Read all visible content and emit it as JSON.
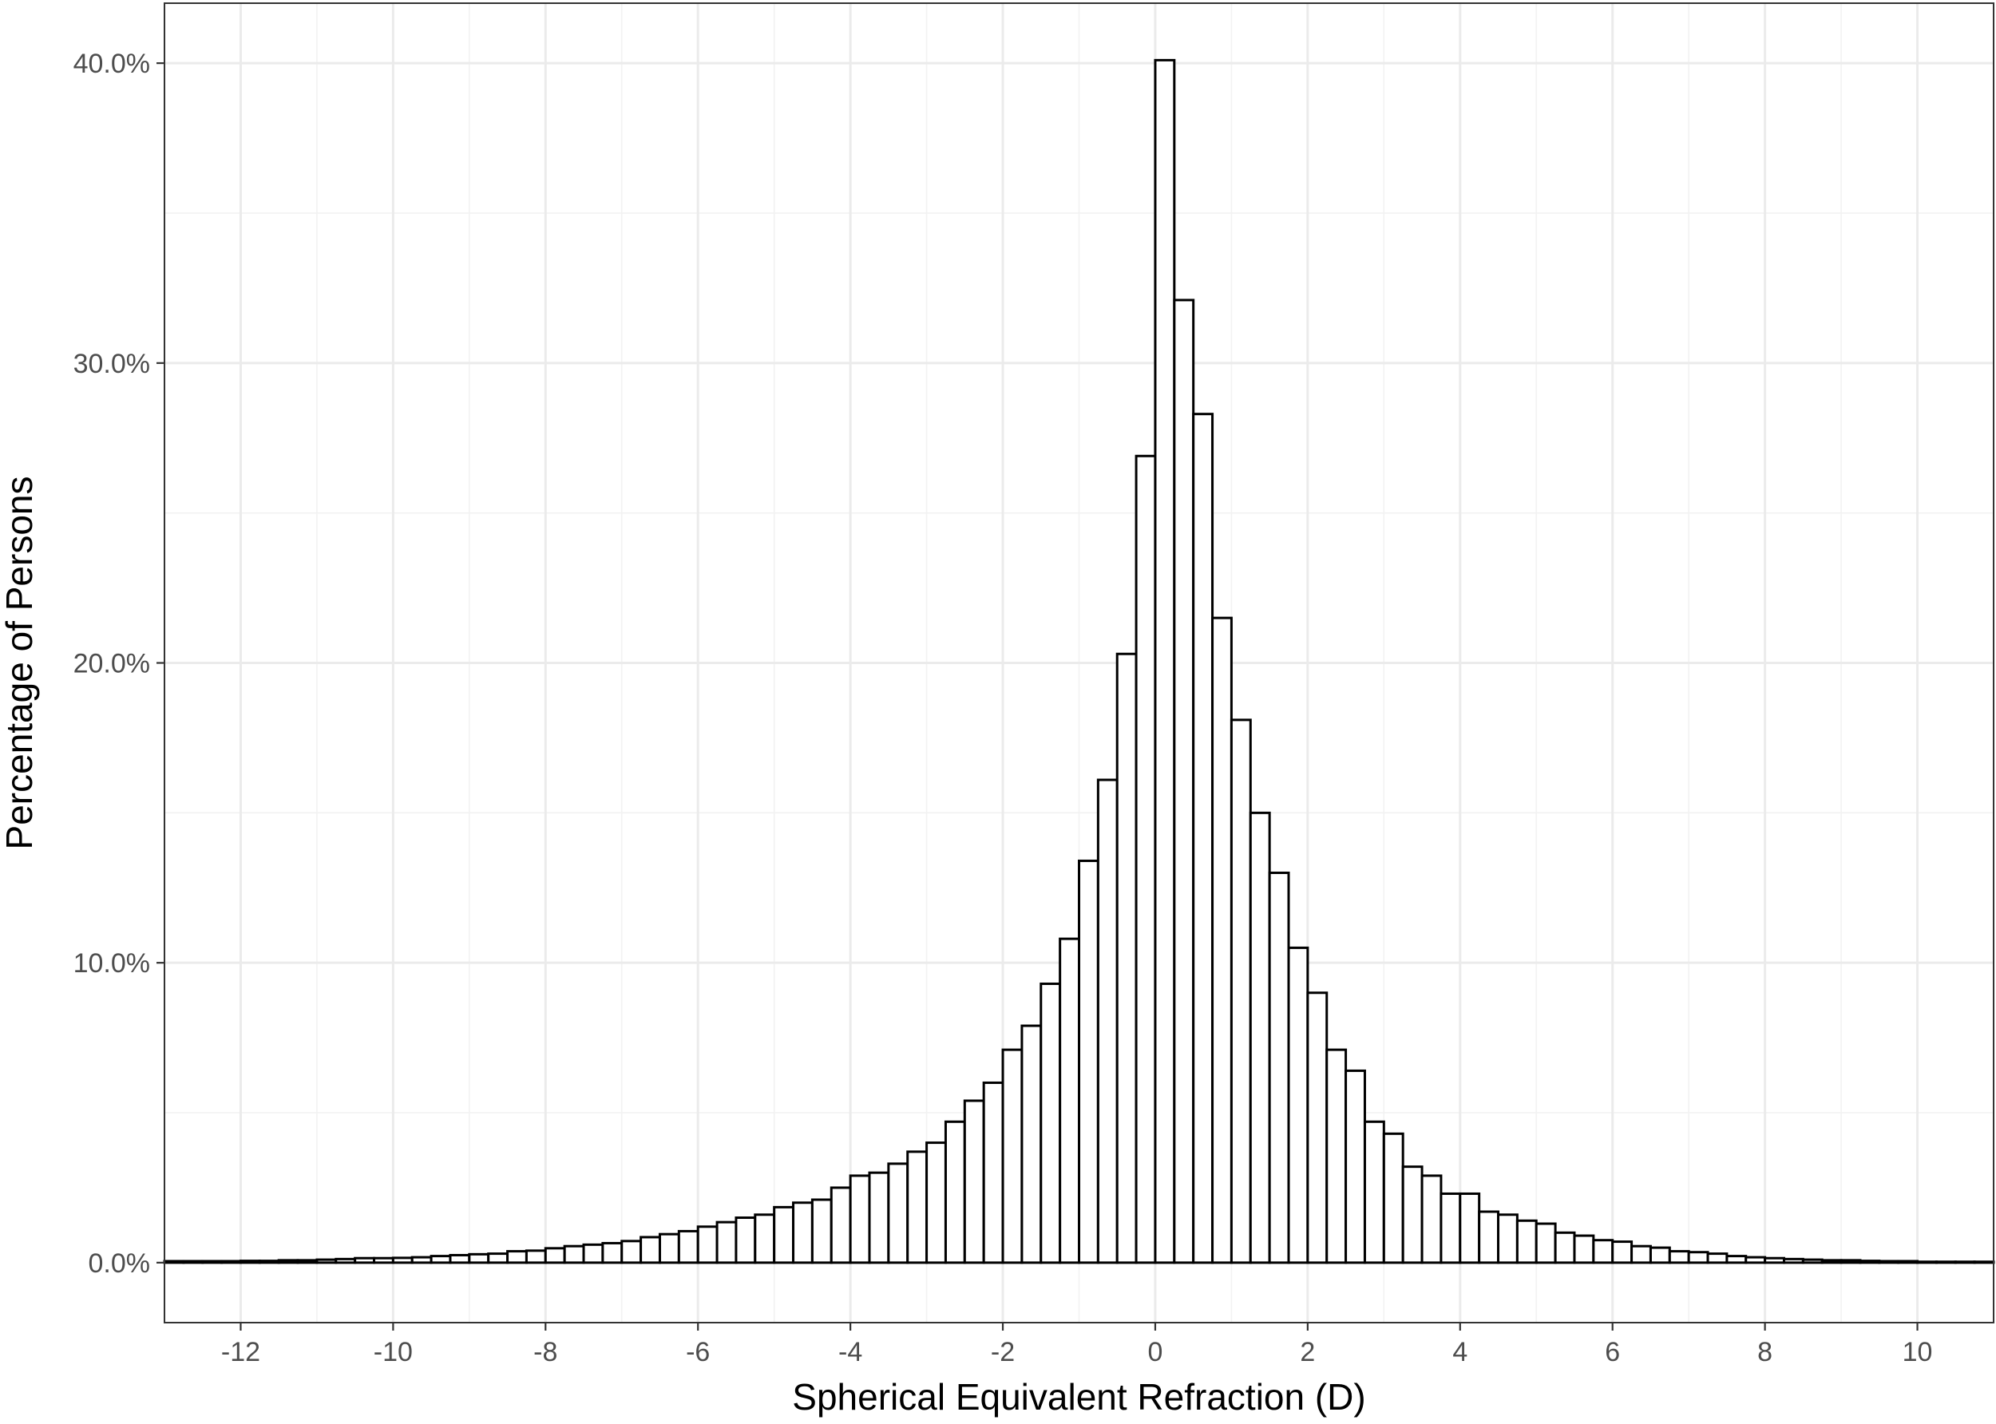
{
  "chart_data": {
    "type": "bar",
    "xlabel": "Spherical Equivalent Refraction (D)",
    "ylabel": "Percentage of Persons",
    "xlim": [
      -13,
      11
    ],
    "ylim": [
      -2,
      42
    ],
    "bin_width": 0.25,
    "x_ticks": [
      -12,
      -10,
      -8,
      -6,
      -4,
      -2,
      0,
      2,
      4,
      6,
      8,
      10
    ],
    "x_tick_labels": [
      "-12",
      "-10",
      "-8",
      "-6",
      "-4",
      "-2",
      "0",
      "2",
      "4",
      "6",
      "8",
      "10"
    ],
    "y_ticks": [
      0,
      10,
      20,
      30,
      40
    ],
    "y_tick_labels": [
      "0.0%",
      "10.0%",
      "20.0%",
      "30.0%",
      "40.0%"
    ],
    "grid": true,
    "colors": {
      "bar_fill": "#ffffff",
      "bar_stroke": "#000000",
      "grid": "#ebebeb"
    },
    "x": [
      -13.0,
      -12.75,
      -12.5,
      -12.25,
      -12.0,
      -11.75,
      -11.5,
      -11.25,
      -11.0,
      -10.75,
      -10.5,
      -10.25,
      -10.0,
      -9.75,
      -9.5,
      -9.25,
      -9.0,
      -8.75,
      -8.5,
      -8.25,
      -8.0,
      -7.75,
      -7.5,
      -7.25,
      -7.0,
      -6.75,
      -6.5,
      -6.25,
      -6.0,
      -5.75,
      -5.5,
      -5.25,
      -5.0,
      -4.75,
      -4.5,
      -4.25,
      -4.0,
      -3.75,
      -3.5,
      -3.25,
      -3.0,
      -2.75,
      -2.5,
      -2.25,
      -2.0,
      -1.75,
      -1.5,
      -1.25,
      -1.0,
      -0.75,
      -0.5,
      -0.25,
      0.0,
      0.25,
      0.5,
      0.75,
      1.0,
      1.25,
      1.5,
      1.75,
      2.0,
      2.25,
      2.5,
      2.75,
      3.0,
      3.25,
      3.5,
      3.75,
      4.0,
      4.25,
      4.5,
      4.75,
      5.0,
      5.25,
      5.5,
      5.75,
      6.0,
      6.25,
      6.5,
      6.75,
      7.0,
      7.25,
      7.5,
      7.75,
      8.0,
      8.25,
      8.5,
      8.75,
      9.0,
      9.25,
      9.5,
      9.75,
      10.0,
      10.25,
      10.5,
      10.75
    ],
    "values": [
      0.05,
      0.05,
      0.05,
      0.05,
      0.06,
      0.06,
      0.08,
      0.08,
      0.1,
      0.12,
      0.15,
      0.15,
      0.16,
      0.18,
      0.22,
      0.25,
      0.28,
      0.3,
      0.38,
      0.4,
      0.48,
      0.55,
      0.6,
      0.65,
      0.72,
      0.85,
      0.95,
      1.05,
      1.2,
      1.35,
      1.5,
      1.6,
      1.85,
      2.0,
      2.1,
      2.5,
      2.9,
      3.0,
      3.3,
      3.7,
      4.0,
      4.7,
      5.4,
      6.0,
      7.1,
      7.9,
      9.3,
      10.8,
      13.4,
      16.1,
      20.3,
      26.9,
      40.1,
      32.1,
      28.3,
      21.5,
      18.1,
      15.0,
      13.0,
      10.5,
      9.0,
      7.1,
      6.4,
      4.7,
      4.3,
      3.2,
      2.9,
      2.3,
      2.3,
      1.7,
      1.6,
      1.4,
      1.3,
      1.0,
      0.9,
      0.75,
      0.7,
      0.55,
      0.5,
      0.38,
      0.35,
      0.3,
      0.22,
      0.18,
      0.15,
      0.12,
      0.1,
      0.08,
      0.08,
      0.06,
      0.05,
      0.05,
      0.03,
      0.03,
      0.03,
      0.03
    ]
  }
}
